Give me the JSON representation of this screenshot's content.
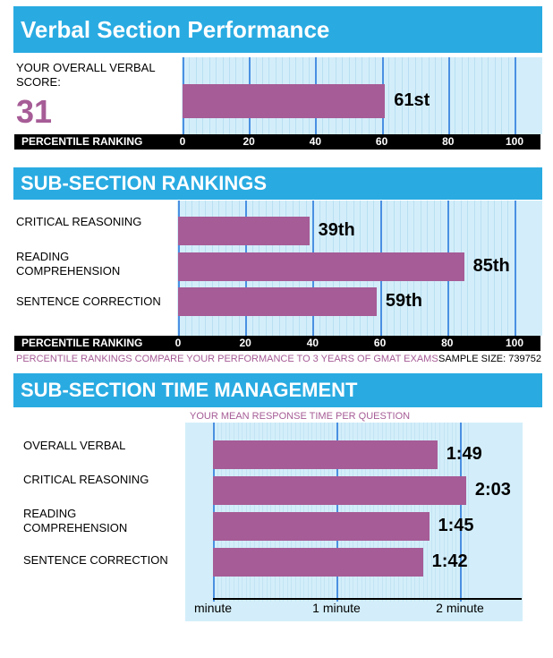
{
  "sections": {
    "verbal": {
      "title": "Verbal Section Performance"
    },
    "sub": {
      "title": "SUB-SECTION RANKINGS"
    },
    "time": {
      "title": "SUB-SECTION TIME MANAGEMENT"
    }
  },
  "overall": {
    "label": "YOUR OVERALL VERBAL SCORE:",
    "score": "31"
  },
  "axis": {
    "title": "PERCENTILE RANKING"
  },
  "notes": {
    "percentile_note": "PERCENTILE RANKINGS COMPARE YOUR PERFORMANCE TO 3 YEARS OF GMAT EXAMS",
    "sample_size": "SAMPLE SIZE: 739752",
    "time_subtitle": "YOUR MEAN RESPONSE TIME PER QUESTION"
  },
  "colors": {
    "banner": "#29abe2",
    "bar": "#a65c96",
    "panel": "#d3eefa",
    "score": "#a65c96"
  },
  "chart_data": [
    {
      "type": "bar",
      "orientation": "horizontal",
      "categories": [
        ""
      ],
      "values": [
        61
      ],
      "data_labels": [
        "61st"
      ],
      "xlabel": "PERCENTILE RANKING",
      "xlim": [
        0,
        100
      ],
      "xticks": [
        "0",
        "20",
        "40",
        "60",
        "80",
        "100"
      ]
    },
    {
      "type": "bar",
      "orientation": "horizontal",
      "categories": [
        "CRITICAL REASONING",
        "READING COMPREHENSION",
        "SENTENCE CORRECTION"
      ],
      "category_lines": [
        [
          "CRITICAL REASONING"
        ],
        [
          "READING",
          "COMPREHENSION"
        ],
        [
          "SENTENCE CORRECTION"
        ]
      ],
      "values": [
        39,
        85,
        59
      ],
      "data_labels": [
        "39th",
        "85th",
        "59th"
      ],
      "xlabel": "PERCENTILE RANKING",
      "xlim": [
        0,
        100
      ],
      "xticks": [
        "0",
        "20",
        "40",
        "60",
        "80",
        "100"
      ]
    },
    {
      "type": "bar",
      "orientation": "horizontal",
      "title": "YOUR MEAN RESPONSE TIME PER QUESTION",
      "categories": [
        "OVERALL VERBAL",
        "CRITICAL REASONING",
        "READING COMPREHENSION",
        "SENTENCE CORRECTION"
      ],
      "category_lines": [
        [
          "OVERALL VERBAL"
        ],
        [
          "CRITICAL REASONING"
        ],
        [
          "READING",
          "COMPREHENSION"
        ],
        [
          "SENTENCE CORRECTION"
        ]
      ],
      "values": [
        109,
        123,
        105,
        102
      ],
      "data_labels": [
        "1:49",
        "2:03",
        "1:45",
        "1:42"
      ],
      "xlim": [
        0,
        125
      ],
      "xtick_values": [
        0,
        60,
        120
      ],
      "xticks": [
        "minute",
        "1 minute",
        "2 minute"
      ]
    }
  ]
}
